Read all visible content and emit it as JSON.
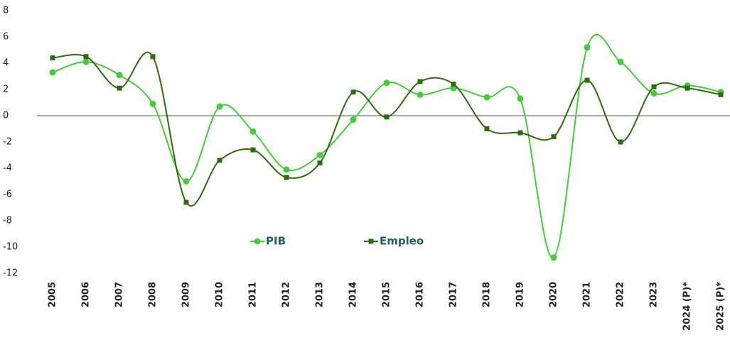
{
  "chart_data": {
    "type": "line",
    "categories": [
      "2005",
      "2006",
      "2007",
      "2008",
      "2009",
      "2010",
      "2011",
      "2012",
      "2013",
      "2014",
      "2015",
      "2016",
      "2017",
      "2018",
      "2019",
      "2020",
      "2021",
      "2022",
      "2023",
      "2024 (P)*",
      "2025 (P)*"
    ],
    "series": [
      {
        "name": "PIB",
        "color": "#45cc3a",
        "marker": "circle",
        "values": [
          3.3,
          4.1,
          3.1,
          0.9,
          -5.0,
          0.7,
          -1.2,
          -4.1,
          -3.0,
          -0.3,
          2.5,
          1.6,
          2.1,
          1.4,
          1.3,
          -10.8,
          5.2,
          4.1,
          1.7,
          2.3,
          1.8
        ]
      },
      {
        "name": "Empleo",
        "color": "#2e6b0e",
        "marker": "square",
        "values": [
          4.4,
          4.5,
          2.1,
          4.5,
          -6.6,
          -3.4,
          -2.6,
          -4.7,
          -3.6,
          1.8,
          -0.1,
          2.6,
          2.4,
          -1.0,
          -1.3,
          -1.6,
          2.7,
          -2.0,
          2.2,
          2.1,
          1.6
        ]
      }
    ],
    "ylim": [
      -12,
      8
    ],
    "yticks": [
      -12,
      -10,
      -8,
      -6,
      -4,
      -2,
      0,
      2,
      4,
      6,
      8
    ],
    "smooth": true,
    "grid": false
  }
}
